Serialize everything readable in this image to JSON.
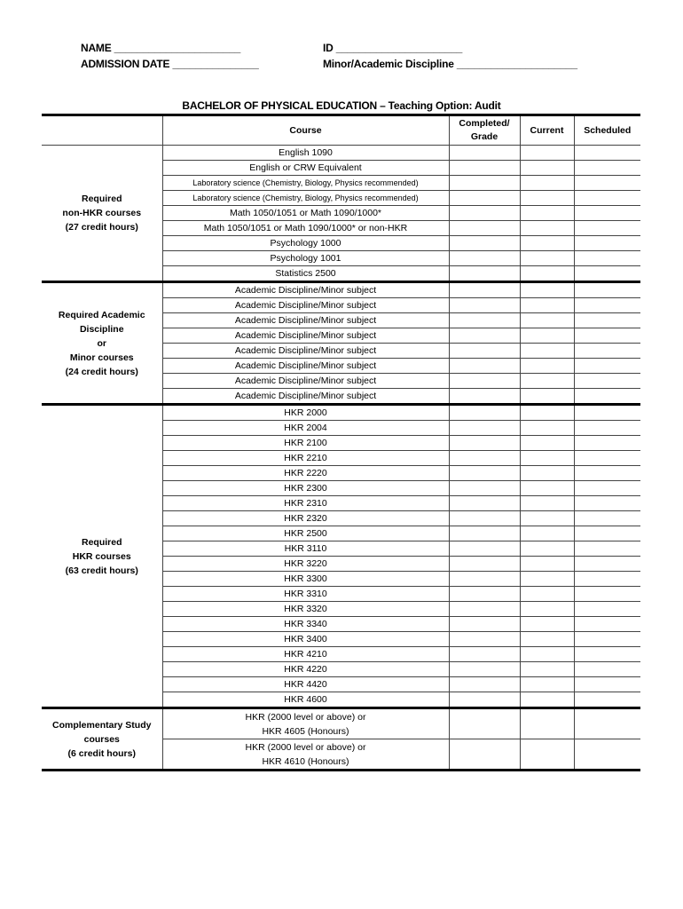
{
  "header": {
    "name_label": "NAME ______________________",
    "admission_label": "ADMISSION DATE _______________",
    "id_label": "ID ______________________",
    "minor_label": "Minor/Academic Discipline _____________________"
  },
  "title": "BACHELOR OF PHYSICAL EDUCATION – Teaching Option: Audit",
  "columns": {
    "section": "",
    "course": "Course",
    "completed": "Completed/ Grade",
    "current": "Current",
    "scheduled": "Scheduled"
  },
  "sections": [
    {
      "label": [
        "Required",
        "non-HKR courses",
        "(27 credit hours)"
      ],
      "courses": [
        "English 1090",
        "English or CRW Equivalent",
        "Laboratory science (Chemistry, Biology, Physics recommended)",
        "Laboratory science (Chemistry, Biology, Physics recommended)",
        "Math 1050/1051 or Math 1090/1000*",
        "Math 1050/1051 or Math 1090/1000* or non-HKR",
        "Psychology 1000",
        "Psychology 1001",
        "Statistics 2500"
      ]
    },
    {
      "label": [
        "Required Academic",
        "Discipline",
        "or",
        "Minor courses",
        "(24 credit hours)"
      ],
      "courses": [
        "Academic Discipline/Minor subject",
        "Academic Discipline/Minor subject",
        "Academic Discipline/Minor subject",
        "Academic Discipline/Minor subject",
        "Academic Discipline/Minor subject",
        "Academic Discipline/Minor subject",
        "Academic Discipline/Minor subject",
        "Academic Discipline/Minor subject"
      ]
    },
    {
      "label": [
        "Required",
        "HKR courses",
        "(63 credit hours)"
      ],
      "courses": [
        "HKR 2000",
        "HKR 2004",
        "HKR 2100",
        "HKR 2210",
        "HKR 2220",
        "HKR 2300",
        "HKR 2310",
        "HKR 2320",
        "HKR 2500",
        "HKR 3110",
        "HKR 3220",
        "HKR 3300",
        "HKR 3310",
        "HKR 3320",
        "HKR 3340",
        "HKR 3400",
        "HKR 4210",
        "HKR 4220",
        "HKR 4420",
        "HKR 4600"
      ]
    },
    {
      "label": [
        "Complementary Study",
        "courses",
        "(6 credit hours)"
      ],
      "courses": [
        [
          "HKR (2000 level or above) or",
          "HKR 4605 (Honours)"
        ],
        [
          "HKR (2000 level or above) or",
          "HKR 4610 (Honours)"
        ]
      ]
    }
  ]
}
